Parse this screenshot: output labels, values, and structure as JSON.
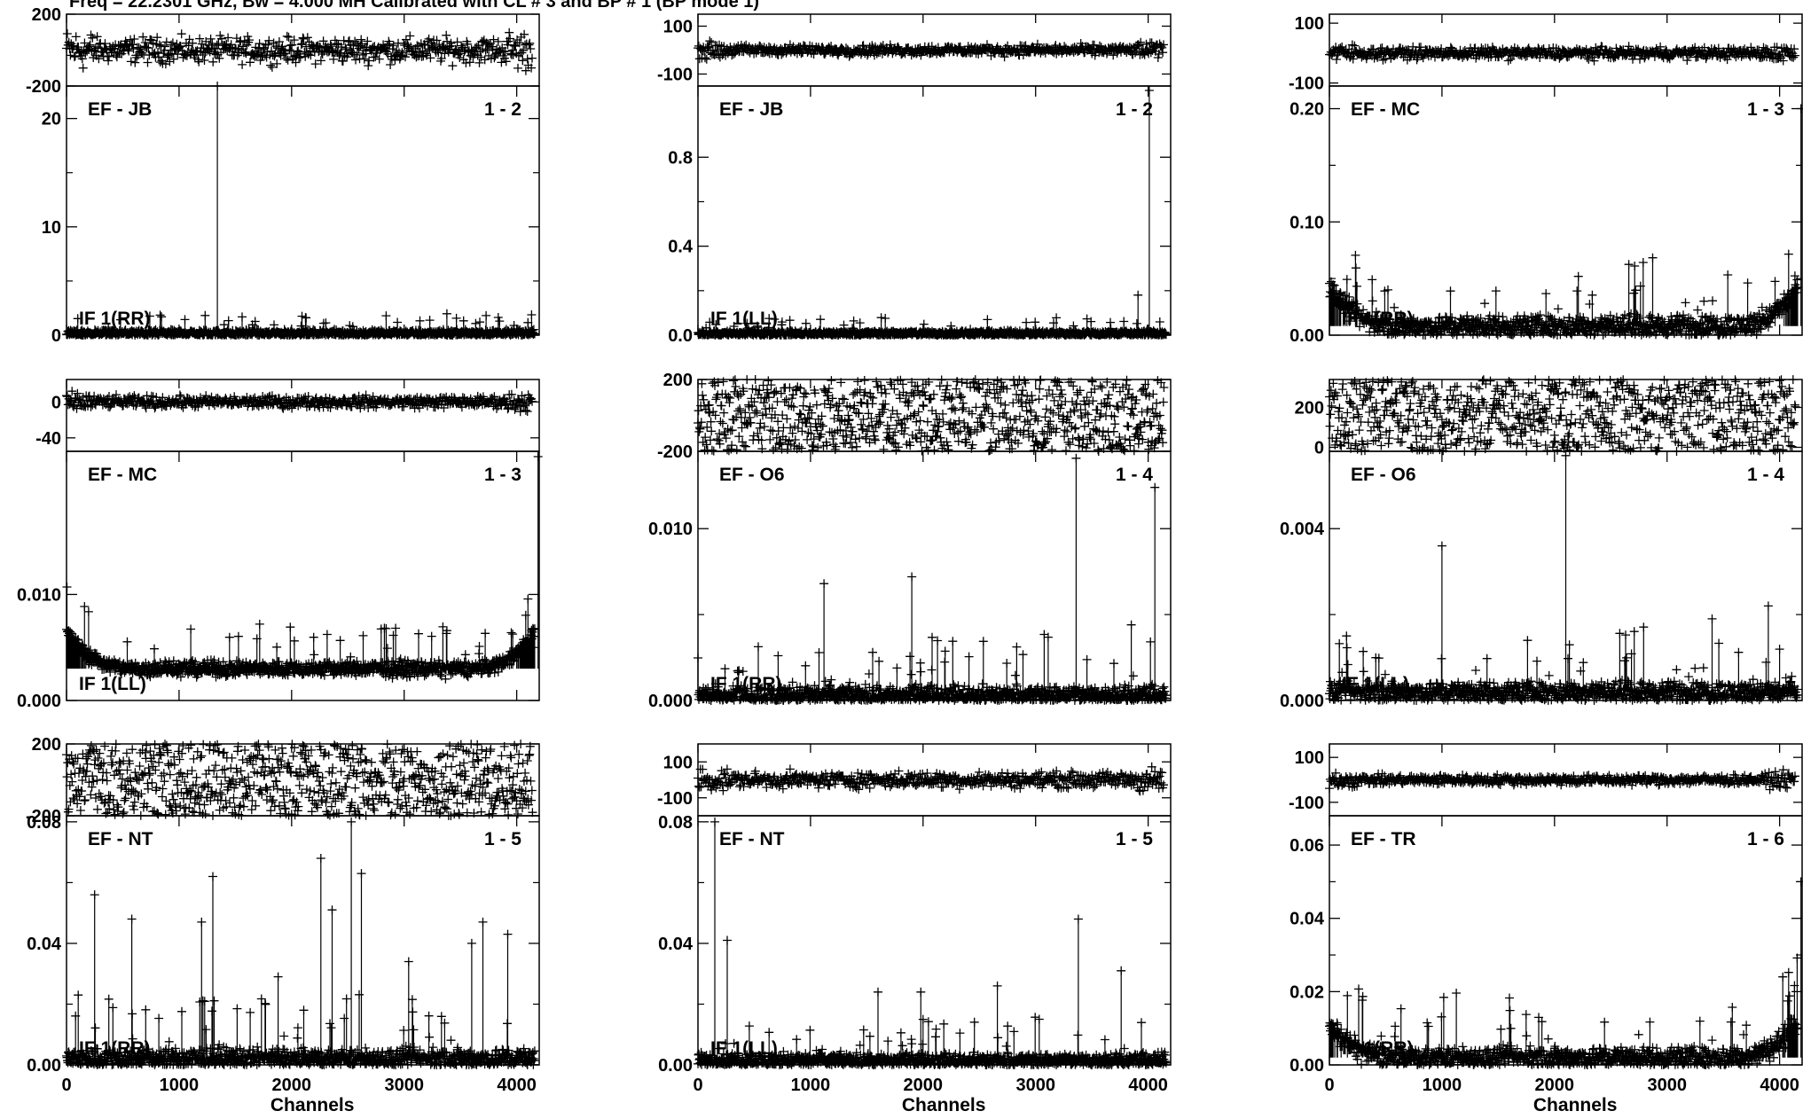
{
  "header": {
    "title": "Freq = 22.2301 GHz, Bw = 4.000 MH   Calibrated with CL # 3 and BP # 1 (BP mode 1)"
  },
  "chart_data": [
    {
      "type": "scatter",
      "baseline": "EF - JB",
      "pair": "1 - 2",
      "polarization": "IF 1(RR)",
      "x_ticks": [
        0,
        1000,
        2000,
        3000,
        4000
      ],
      "xlim": [
        0,
        4200
      ],
      "xlabel": "",
      "phase": {
        "ylim": [
          -200,
          200
        ],
        "ticks": [
          200,
          -200
        ],
        "spread": 130
      },
      "amplitude": {
        "ylim": [
          0,
          23
        ],
        "ticks": [
          {
            "v": 20,
            "l": "20"
          },
          {
            "v": 10,
            "l": "10"
          },
          {
            "v": 0,
            "l": "0"
          }
        ],
        "baseline": 0.18,
        "noise": 0.25,
        "spikes": [
          [
            1340,
            23
          ]
        ],
        "edge_left": 0,
        "edge_right": 0
      }
    },
    {
      "type": "scatter",
      "baseline": "EF - JB",
      "pair": "1 - 2",
      "polarization": "IF 1(LL)",
      "x_ticks": [
        0,
        1000,
        2000,
        3000,
        4000
      ],
      "xlim": [
        0,
        4200
      ],
      "xlabel": "",
      "phase": {
        "ylim": [
          -150,
          150
        ],
        "ticks": [
          100,
          -100
        ],
        "spread": 40
      },
      "amplitude": {
        "ylim": [
          0,
          1.12
        ],
        "ticks": [
          {
            "v": 0.8,
            "l": "0.8"
          },
          {
            "v": 0.4,
            "l": "0.4"
          },
          {
            "v": 0.0,
            "l": "0.0"
          }
        ],
        "baseline": 0.008,
        "noise": 0.01,
        "spikes": [
          [
            3910,
            0.18
          ],
          [
            4010,
            1.1
          ]
        ],
        "edge_left": 0,
        "edge_right": 0
      }
    },
    {
      "type": "scatter",
      "baseline": "EF - MC",
      "pair": "1 - 3",
      "polarization": "IF 1(RR)",
      "x_ticks": [
        0,
        1000,
        2000,
        3000,
        4000
      ],
      "xlim": [
        0,
        4200
      ],
      "xlabel": "",
      "phase": {
        "ylim": [
          -110,
          130
        ],
        "ticks": [
          100,
          -100
        ],
        "spread": 35
      },
      "amplitude": {
        "ylim": [
          0,
          0.22
        ],
        "ticks": [
          {
            "v": 0.2,
            "l": "0.20"
          },
          {
            "v": 0.1,
            "l": "0.10"
          },
          {
            "v": 0.0,
            "l": "0.00"
          }
        ],
        "baseline": 0.008,
        "noise": 0.008,
        "spikes": [
          [
            4190,
            0.2
          ]
        ],
        "edge_left": 0.05,
        "edge_right": 0.05
      }
    },
    {
      "type": "scatter",
      "baseline": "EF - MC",
      "pair": "1 - 3",
      "polarization": "IF 1(LL)",
      "x_ticks": [
        0,
        1000,
        2000,
        3000,
        4000
      ],
      "xlim": [
        0,
        4200
      ],
      "xlabel": "",
      "phase": {
        "ylim": [
          -55,
          25
        ],
        "ticks": [
          {
            "v": 0,
            "l": "0"
          },
          {
            "v": -40,
            "l": "-40"
          }
        ],
        "spread": 12
      },
      "amplitude": {
        "ylim": [
          0,
          0.0235
        ],
        "ticks": [
          {
            "v": 0.01,
            "l": "0.010"
          },
          {
            "v": 0.0,
            "l": "0.000"
          }
        ],
        "baseline": 0.003,
        "noise": 0.0006,
        "spikes": [
          [
            4190,
            0.023
          ]
        ],
        "edge_left": 0.005,
        "edge_right": 0.005
      }
    },
    {
      "type": "scatter",
      "baseline": "EF - O6",
      "pair": "1 - 4",
      "polarization": "IF 1(RR)",
      "x_ticks": [
        0,
        1000,
        2000,
        3000,
        4000
      ],
      "xlim": [
        0,
        4200
      ],
      "xlabel": "",
      "phase": {
        "ylim": [
          -200,
          200
        ],
        "ticks": [
          200,
          -200
        ],
        "spread": 200
      },
      "amplitude": {
        "ylim": [
          0,
          0.0145
        ],
        "ticks": [
          {
            "v": 0.01,
            "l": "0.010"
          },
          {
            "v": 0.0,
            "l": "0.000"
          }
        ],
        "baseline": 0.0003,
        "noise": 0.0005,
        "spikes": [
          [
            1120,
            0.0068
          ],
          [
            1900,
            0.0072
          ],
          [
            3360,
            0.0141
          ],
          [
            4060,
            0.0124
          ],
          [
            3850,
            0.0044
          ]
        ],
        "edge_left": 0,
        "edge_right": 0
      }
    },
    {
      "type": "scatter",
      "baseline": "EF - O6",
      "pair": "1 - 4",
      "polarization": "IF 1(LL)",
      "x_ticks": [
        0,
        1000,
        2000,
        3000,
        4000
      ],
      "xlim": [
        0,
        4200
      ],
      "xlabel": "",
      "phase": {
        "ylim": [
          -20,
          340
        ],
        "ticks": [
          {
            "v": 200,
            "l": "200"
          },
          {
            "v": 0,
            "l": "0"
          }
        ],
        "spread": 180
      },
      "amplitude": {
        "ylim": [
          0,
          0.0058
        ],
        "ticks": [
          {
            "v": 0.004,
            "l": "0.004"
          },
          {
            "v": 0.0,
            "l": "0.000"
          }
        ],
        "baseline": 0.0002,
        "noise": 0.0002,
        "spikes": [
          [
            1000,
            0.0036
          ],
          [
            2100,
            0.0057
          ],
          [
            1760,
            0.0014
          ],
          [
            3900,
            0.0022
          ],
          [
            3400,
            0.0019
          ]
        ],
        "edge_left": 0,
        "edge_right": 0
      }
    },
    {
      "type": "scatter",
      "baseline": "EF - NT",
      "pair": "1 - 5",
      "polarization": "IF 1(RR)",
      "x_ticks": [
        0,
        1000,
        2000,
        3000,
        4000
      ],
      "xlim": [
        0,
        4200
      ],
      "xlabel": "Channels",
      "phase": {
        "ylim": [
          -200,
          200
        ],
        "ticks": [
          200,
          -200
        ],
        "spread": 200
      },
      "amplitude": {
        "ylim": [
          0,
          0.082
        ],
        "ticks": [
          {
            "v": 0.08,
            "l": "0.08"
          },
          {
            "v": 0.04,
            "l": "0.04"
          },
          {
            "v": 0.0,
            "l": "0.00"
          }
        ],
        "baseline": 0.002,
        "noise": 0.003,
        "spikes": [
          [
            250,
            0.056
          ],
          [
            580,
            0.048
          ],
          [
            1300,
            0.062
          ],
          [
            1200,
            0.047
          ],
          [
            2260,
            0.068
          ],
          [
            2360,
            0.051
          ],
          [
            2530,
            0.08
          ],
          [
            2620,
            0.063
          ],
          [
            3700,
            0.047
          ],
          [
            3920,
            0.043
          ],
          [
            3600,
            0.04
          ],
          [
            3040,
            0.034
          ],
          [
            1880,
            0.029
          ]
        ],
        "edge_left": 0,
        "edge_right": 0
      }
    },
    {
      "type": "scatter",
      "baseline": "EF - NT",
      "pair": "1 - 5",
      "polarization": "IF 1(LL)",
      "x_ticks": [
        0,
        1000,
        2000,
        3000,
        4000
      ],
      "xlim": [
        0,
        4200
      ],
      "xlabel": "Channels",
      "phase": {
        "ylim": [
          -200,
          200
        ],
        "ticks": [
          100,
          -100
        ],
        "spread": 80
      },
      "amplitude": {
        "ylim": [
          0,
          0.082
        ],
        "ticks": [
          {
            "v": 0.08,
            "l": "0.08"
          },
          {
            "v": 0.04,
            "l": "0.04"
          },
          {
            "v": 0.0,
            "l": "0.00"
          }
        ],
        "baseline": 0.0015,
        "noise": 0.002,
        "spikes": [
          [
            150,
            0.08
          ],
          [
            260,
            0.041
          ],
          [
            3380,
            0.048
          ],
          [
            3760,
            0.031
          ],
          [
            2660,
            0.026
          ],
          [
            1600,
            0.024
          ],
          [
            1980,
            0.024
          ]
        ],
        "edge_left": 0,
        "edge_right": 0
      }
    },
    {
      "type": "scatter",
      "baseline": "EF - TR",
      "pair": "1 - 6",
      "polarization": "IF 1(RR)",
      "x_ticks": [
        0,
        1000,
        2000,
        3000,
        4000
      ],
      "xlim": [
        0,
        4200
      ],
      "xlabel": "Channels",
      "phase": {
        "ylim": [
          -160,
          160
        ],
        "ticks": [
          100,
          -100
        ],
        "spread": 40
      },
      "amplitude": {
        "ylim": [
          0,
          0.068
        ],
        "ticks": [
          {
            "v": 0.06,
            "l": "0.06"
          },
          {
            "v": 0.04,
            "l": "0.04"
          },
          {
            "v": 0.02,
            "l": "0.02"
          },
          {
            "v": 0.0,
            "l": "0.00"
          }
        ],
        "baseline": 0.002,
        "noise": 0.0025,
        "spikes": [
          [
            4190,
            0.05
          ]
        ],
        "edge_left": 0.013,
        "edge_right": 0.014
      }
    }
  ]
}
